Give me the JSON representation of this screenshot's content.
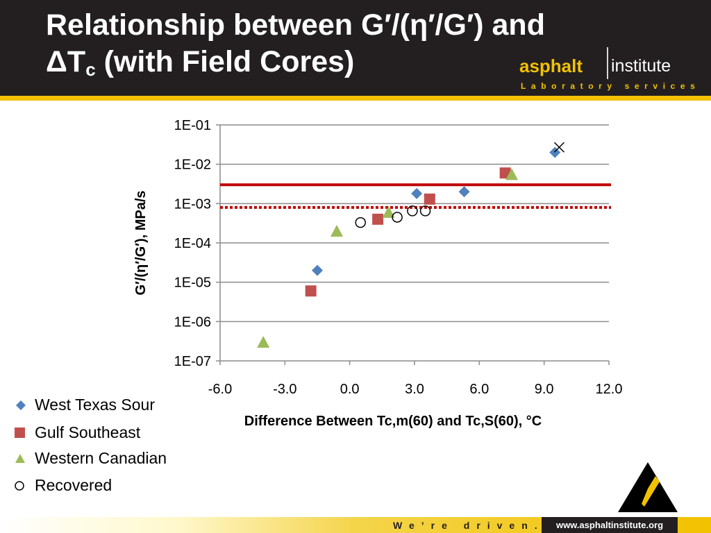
{
  "slide": {
    "title_line1": "Relationship between G′/(η′/G′) and",
    "title_line2_prefix": "ΔT",
    "title_line2_sub": "c",
    "title_line2_suffix": " (with Field Cores)"
  },
  "logo": {
    "word1": "asphalt",
    "word2": "institute",
    "tagline": "Laboratory services"
  },
  "footer": {
    "tagline": "We’re driven.",
    "url": "www.asphaltinstitute.org"
  },
  "colors": {
    "header_bg": "#231f20",
    "accent_yellow": "#f2c200",
    "west_texas": "#4f81bd",
    "gulf": "#c0504d",
    "western_canadian": "#9bbb59",
    "limit_line": "#c00000"
  },
  "chart_data": {
    "type": "scatter",
    "xlabel": "Difference Between Tc,m(60) and Tc,S(60), °C",
    "ylabel": "G′/(η′/G′), MPa/s",
    "xlim": [
      -6,
      12
    ],
    "ylim": [
      1e-07,
      0.1
    ],
    "y_scale": "log",
    "x_ticks": [
      "-6.0",
      "-3.0",
      "0.0",
      "3.0",
      "6.0",
      "9.0",
      "12.0"
    ],
    "y_ticks": [
      "1E-07",
      "1E-06",
      "1E-05",
      "1E-04",
      "1E-03",
      "1E-02",
      "1E-01"
    ],
    "grid": "horizontal",
    "legend_position": "bottom-left",
    "series": [
      {
        "name": "West Texas Sour",
        "marker": "diamond",
        "points": [
          {
            "x": -1.5,
            "y": 2e-05
          },
          {
            "x": 3.1,
            "y": 0.0018
          },
          {
            "x": 5.3,
            "y": 0.002
          },
          {
            "x": 9.5,
            "y": 0.02
          }
        ]
      },
      {
        "name": "Gulf Southeast",
        "marker": "square",
        "points": [
          {
            "x": -1.8,
            "y": 6e-06
          },
          {
            "x": 1.3,
            "y": 0.0004
          },
          {
            "x": 3.7,
            "y": 0.0013
          },
          {
            "x": 7.2,
            "y": 0.006
          }
        ]
      },
      {
        "name": "Western Canadian",
        "marker": "triangle",
        "points": [
          {
            "x": -4.0,
            "y": 3e-07
          },
          {
            "x": -0.6,
            "y": 0.0002
          },
          {
            "x": 1.8,
            "y": 0.0006
          },
          {
            "x": 7.5,
            "y": 0.0055
          }
        ]
      },
      {
        "name": "Recovered",
        "marker": "circle",
        "points": [
          {
            "x": 0.5,
            "y": 0.00033
          },
          {
            "x": 2.2,
            "y": 0.00045
          },
          {
            "x": 2.9,
            "y": 0.00065
          },
          {
            "x": 3.5,
            "y": 0.00065
          }
        ]
      }
    ],
    "annotations": [
      {
        "marker": "x",
        "x": 9.7,
        "y": 0.027
      }
    ],
    "reference_lines": [
      {
        "style": "solid",
        "y": 0.003
      },
      {
        "style": "dotted",
        "y": 0.0008
      }
    ]
  }
}
